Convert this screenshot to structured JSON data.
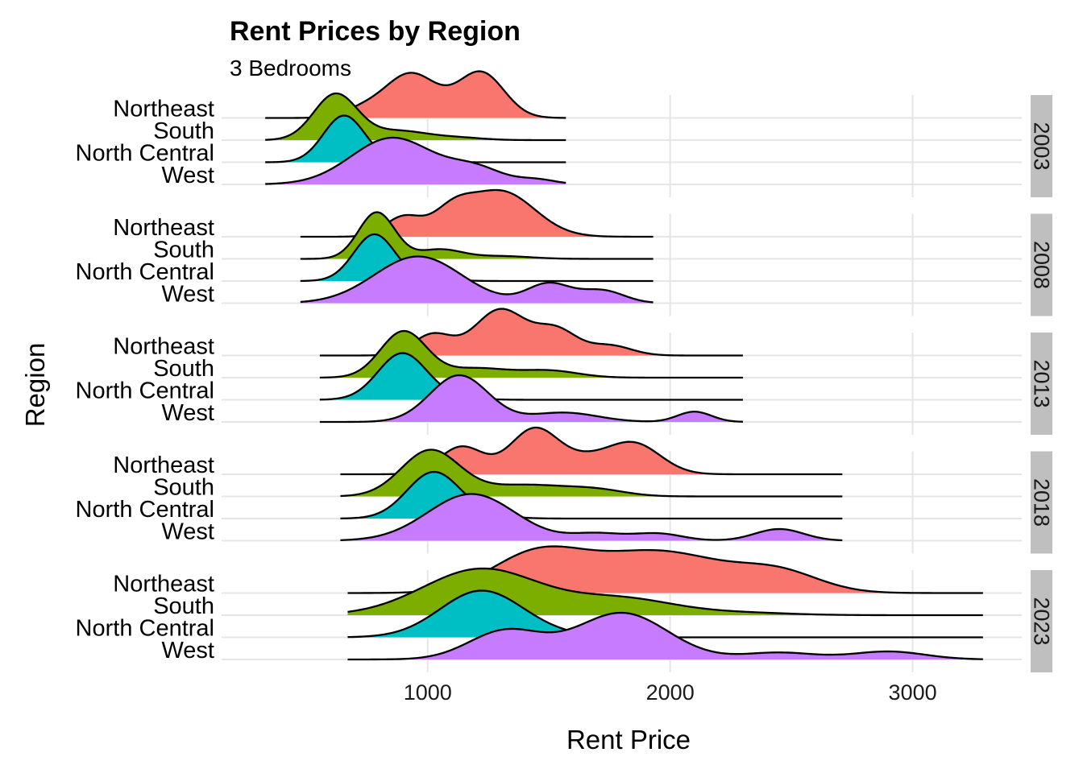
{
  "chart_data": {
    "type": "area",
    "title": "Rent Prices by Region",
    "subtitle": "3 Bedrooms",
    "xlabel": "Rent Price",
    "ylabel": "Region",
    "x_ticks": [
      1000,
      2000,
      3000
    ],
    "xlim": [
      150,
      3450
    ],
    "grid": true,
    "legend": "none",
    "regions": [
      "West",
      "North Central",
      "South",
      "Northeast"
    ],
    "colors": {
      "West": "#c77cff",
      "North Central": "#00bfc4",
      "South": "#7cae00",
      "Northeast": "#f8766d"
    },
    "facets": [
      {
        "year": "2003",
        "x_range": [
          330,
          1570
        ],
        "ridges": [
          {
            "region": "West",
            "peaks": [
              [
                855,
                1,
                170
              ],
              [
                1200,
                0.32,
                110
              ],
              [
                1450,
                0.1,
                80
              ]
            ]
          },
          {
            "region": "North Central",
            "peaks": [
              [
                655,
                1,
                85
              ],
              [
                900,
                0.05,
                100
              ]
            ]
          },
          {
            "region": "South",
            "peaks": [
              [
                620,
                1,
                90
              ],
              [
                880,
                0.2,
                120
              ],
              [
                1130,
                0.05,
                100
              ]
            ]
          },
          {
            "region": "Northeast",
            "peaks": [
              [
                930,
                0.66,
                110
              ],
              [
                1220,
                0.67,
                95
              ],
              [
                720,
                0.1,
                80
              ]
            ]
          }
        ]
      },
      {
        "year": "2008",
        "x_range": [
          475,
          1930
        ],
        "ridges": [
          {
            "region": "West",
            "peaks": [
              [
                960,
                0.82,
                180
              ],
              [
                1500,
                0.34,
                90
              ],
              [
                1720,
                0.22,
                90
              ]
            ]
          },
          {
            "region": "North Central",
            "peaks": [
              [
                780,
                1,
                85
              ],
              [
                1000,
                0.04,
                100
              ]
            ]
          },
          {
            "region": "South",
            "peaks": [
              [
                790,
                1,
                75
              ],
              [
                1050,
                0.2,
                90
              ],
              [
                1300,
                0.06,
                120
              ]
            ]
          },
          {
            "region": "Northeast",
            "peaks": [
              [
                900,
                0.38,
                75
              ],
              [
                1300,
                0.88,
                140
              ],
              [
                1100,
                0.4,
                80
              ]
            ]
          }
        ]
      },
      {
        "year": "2013",
        "x_range": [
          555,
          2300
        ],
        "ridges": [
          {
            "region": "West",
            "peaks": [
              [
                1130,
                1,
                120
              ],
              [
                1560,
                0.2,
                140
              ],
              [
                2100,
                0.22,
                70
              ]
            ]
          },
          {
            "region": "North Central",
            "peaks": [
              [
                895,
                1,
                100
              ],
              [
                1100,
                0.05,
                100
              ]
            ]
          },
          {
            "region": "South",
            "peaks": [
              [
                900,
                1,
                95
              ],
              [
                1200,
                0.2,
                130
              ],
              [
                1500,
                0.15,
                120
              ]
            ]
          },
          {
            "region": "Northeast",
            "peaks": [
              [
                1020,
                0.42,
                80
              ],
              [
                1300,
                0.92,
                105
              ],
              [
                1530,
                0.5,
                85
              ],
              [
                1750,
                0.2,
                90
              ]
            ]
          }
        ]
      },
      {
        "year": "2018",
        "x_range": [
          640,
          2710
        ],
        "ridges": [
          {
            "region": "West",
            "peaks": [
              [
                1180,
                0.8,
                180
              ],
              [
                1700,
                0.12,
                110
              ],
              [
                1950,
                0.12,
                100
              ],
              [
                2450,
                0.2,
                100
              ]
            ]
          },
          {
            "region": "North Central",
            "peaks": [
              [
                1025,
                1,
                110
              ],
              [
                1250,
                0.05,
                100
              ]
            ]
          },
          {
            "region": "South",
            "peaks": [
              [
                1010,
                1,
                120
              ],
              [
                1400,
                0.25,
                180
              ],
              [
                1700,
                0.12,
                120
              ]
            ]
          },
          {
            "region": "Northeast",
            "peaks": [
              [
                1140,
                0.45,
                90
              ],
              [
                1440,
                0.74,
                100
              ],
              [
                1850,
                0.5,
                110
              ],
              [
                1650,
                0.2,
                100
              ]
            ]
          }
        ]
      },
      {
        "year": "2023",
        "x_range": [
          670,
          3290
        ],
        "ridges": [
          {
            "region": "West",
            "peaks": [
              [
                1320,
                0.5,
                150
              ],
              [
                1800,
                0.82,
                190
              ],
              [
                2450,
                0.12,
                150
              ],
              [
                2900,
                0.14,
                150
              ]
            ]
          },
          {
            "region": "North Central",
            "peaks": [
              [
                1220,
                1,
                170
              ],
              [
                1500,
                0.05,
                150
              ]
            ]
          },
          {
            "region": "South",
            "peaks": [
              [
                1220,
                1,
                240
              ],
              [
                1800,
                0.35,
                220
              ],
              [
                2300,
                0.05,
                200
              ]
            ]
          },
          {
            "region": "Northeast",
            "peaks": [
              [
                1450,
                0.6,
                190
              ],
              [
                1950,
                0.66,
                270
              ],
              [
                2450,
                0.3,
                170
              ]
            ]
          }
        ]
      }
    ]
  }
}
